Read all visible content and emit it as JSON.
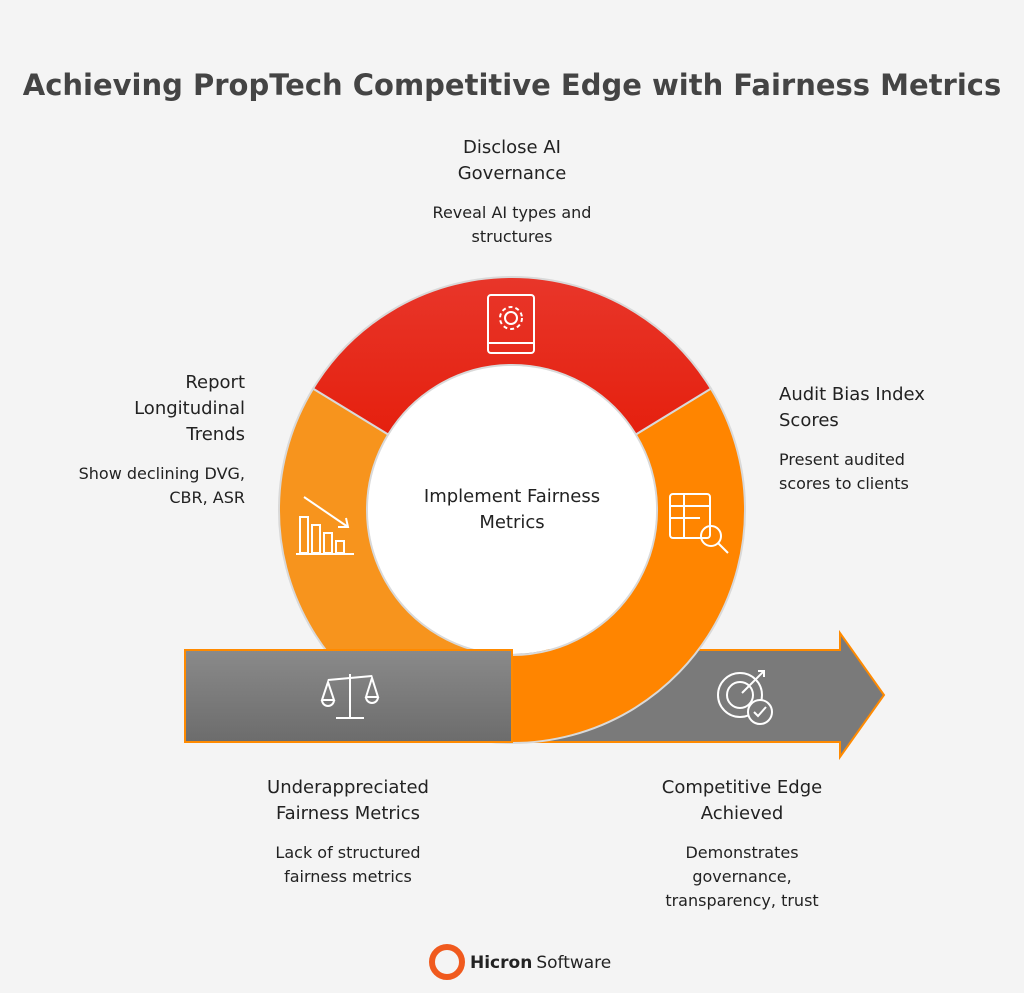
{
  "header": {
    "title": "Achieving PropTech Competitive Edge with Fairness Metrics"
  },
  "center": {
    "lines": [
      "Implement Fairness",
      "Metrics"
    ]
  },
  "stages": [
    {
      "title": [
        "Disclose AI",
        "Governance"
      ],
      "description": [
        "Reveal AI types and",
        "structures"
      ]
    },
    {
      "title": [
        "Report",
        "Longitudinal",
        "Trends"
      ],
      "description": [
        "Show declining DVG,",
        "CBR, ASR"
      ]
    },
    {
      "title": [
        "Audit Bias Index",
        "Scores"
      ],
      "description": [
        "Present audited",
        "scores to clients"
      ]
    },
    {
      "title": [
        "Underappreciated",
        "Fairness Metrics"
      ],
      "description": [
        "Lack of structured",
        "fairness metrics"
      ]
    },
    {
      "title": [
        "Competitive Edge",
        "Achieved"
      ],
      "description": [
        "Demonstrates",
        "governance,",
        "transparency, trust"
      ]
    }
  ],
  "footer": {
    "brand": "Hicron",
    "product": "Software"
  }
}
